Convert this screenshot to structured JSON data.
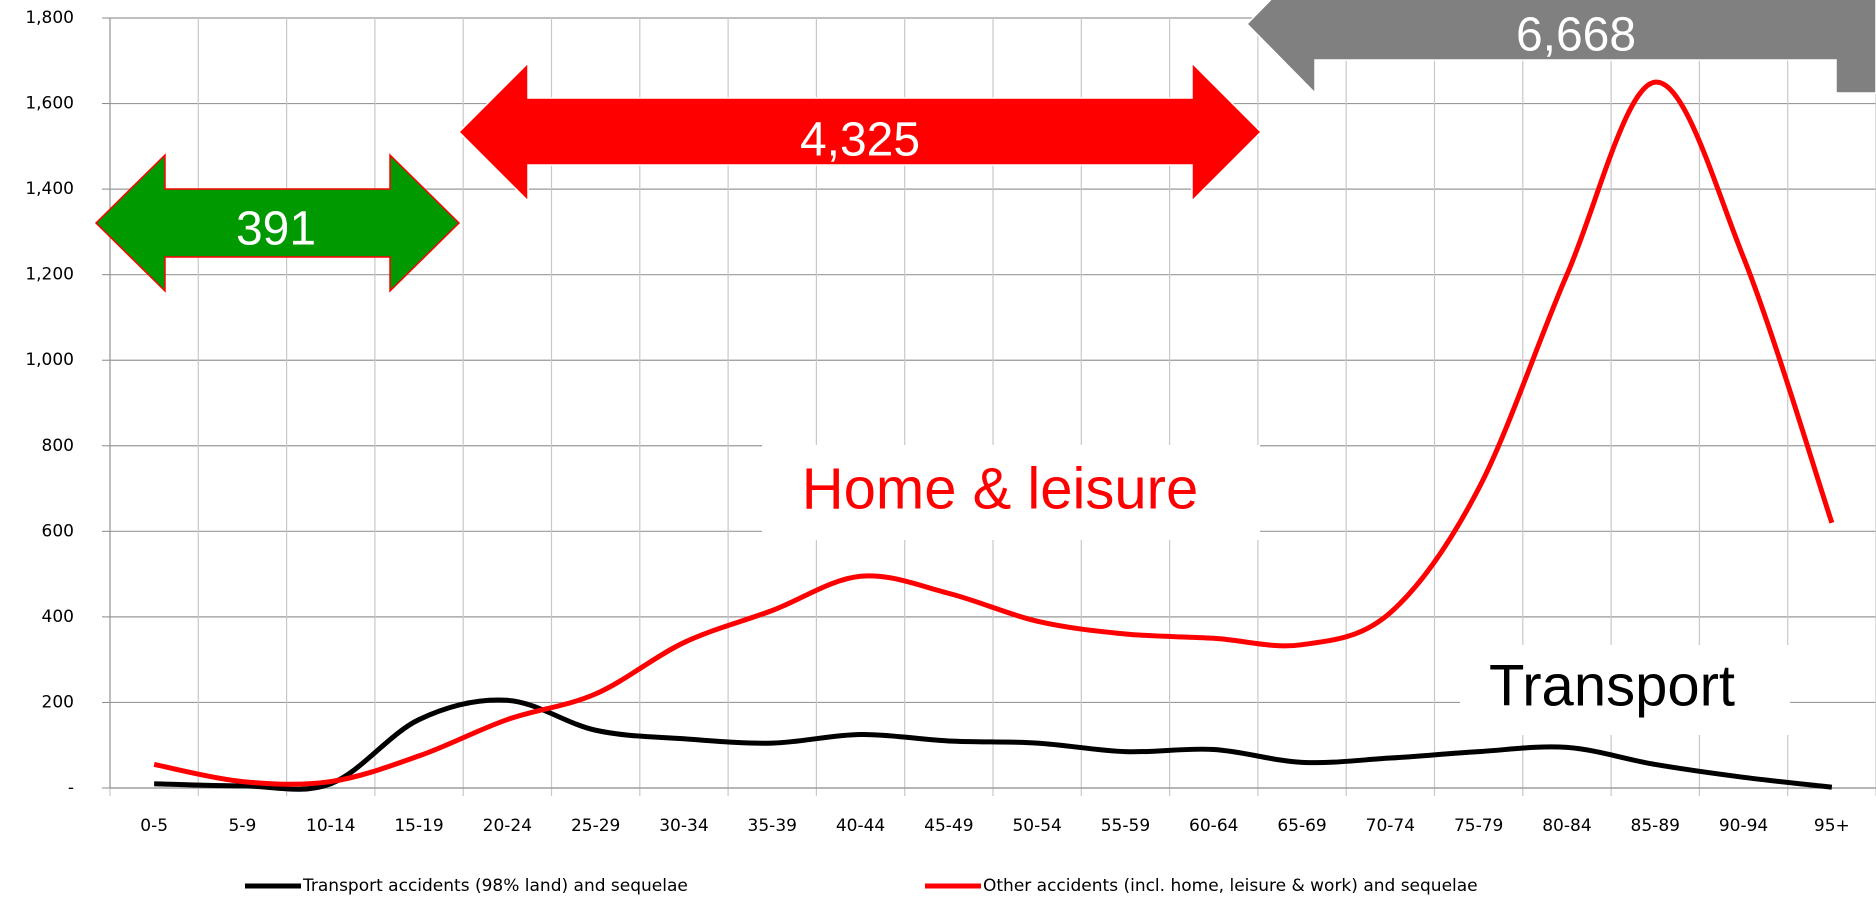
{
  "chart_data": {
    "type": "line",
    "categories": [
      "0-5",
      "5-9",
      "10-14",
      "15-19",
      "20-24",
      "25-29",
      "30-34",
      "35-39",
      "40-44",
      "45-49",
      "50-54",
      "55-59",
      "60-64",
      "65-69",
      "70-74",
      "75-79",
      "80-84",
      "85-89",
      "90-94",
      "95+"
    ],
    "series": [
      {
        "name": "Transport accidents (98% land) and sequelae",
        "color": "#000000",
        "values": [
          10,
          5,
          10,
          160,
          205,
          135,
          115,
          105,
          125,
          110,
          105,
          85,
          90,
          60,
          70,
          85,
          95,
          55,
          25,
          2
        ]
      },
      {
        "name": "Other accidents (incl. home, leisure & work) and sequelae",
        "color": "#ff0000",
        "values": [
          55,
          15,
          15,
          75,
          160,
          220,
          340,
          415,
          495,
          455,
          390,
          360,
          350,
          335,
          410,
          700,
          1200,
          1650,
          1240,
          620
        ]
      }
    ],
    "ylim": [
      0,
      1800
    ],
    "yticks": [
      {
        "value": 0,
        "label": "-"
      },
      200,
      400,
      600,
      800,
      {
        "value": 1000,
        "label": "1,000"
      },
      {
        "value": 1200,
        "label": "1,200"
      },
      {
        "value": 1400,
        "label": "1,400"
      },
      {
        "value": 1600,
        "label": "1,600"
      },
      {
        "value": 1800,
        "label": "1,800"
      }
    ],
    "grid": true,
    "legend": "bottom",
    "annotations": [
      "391",
      "4,325",
      "6,668",
      "Home & leisure",
      "Transport"
    ]
  }
}
